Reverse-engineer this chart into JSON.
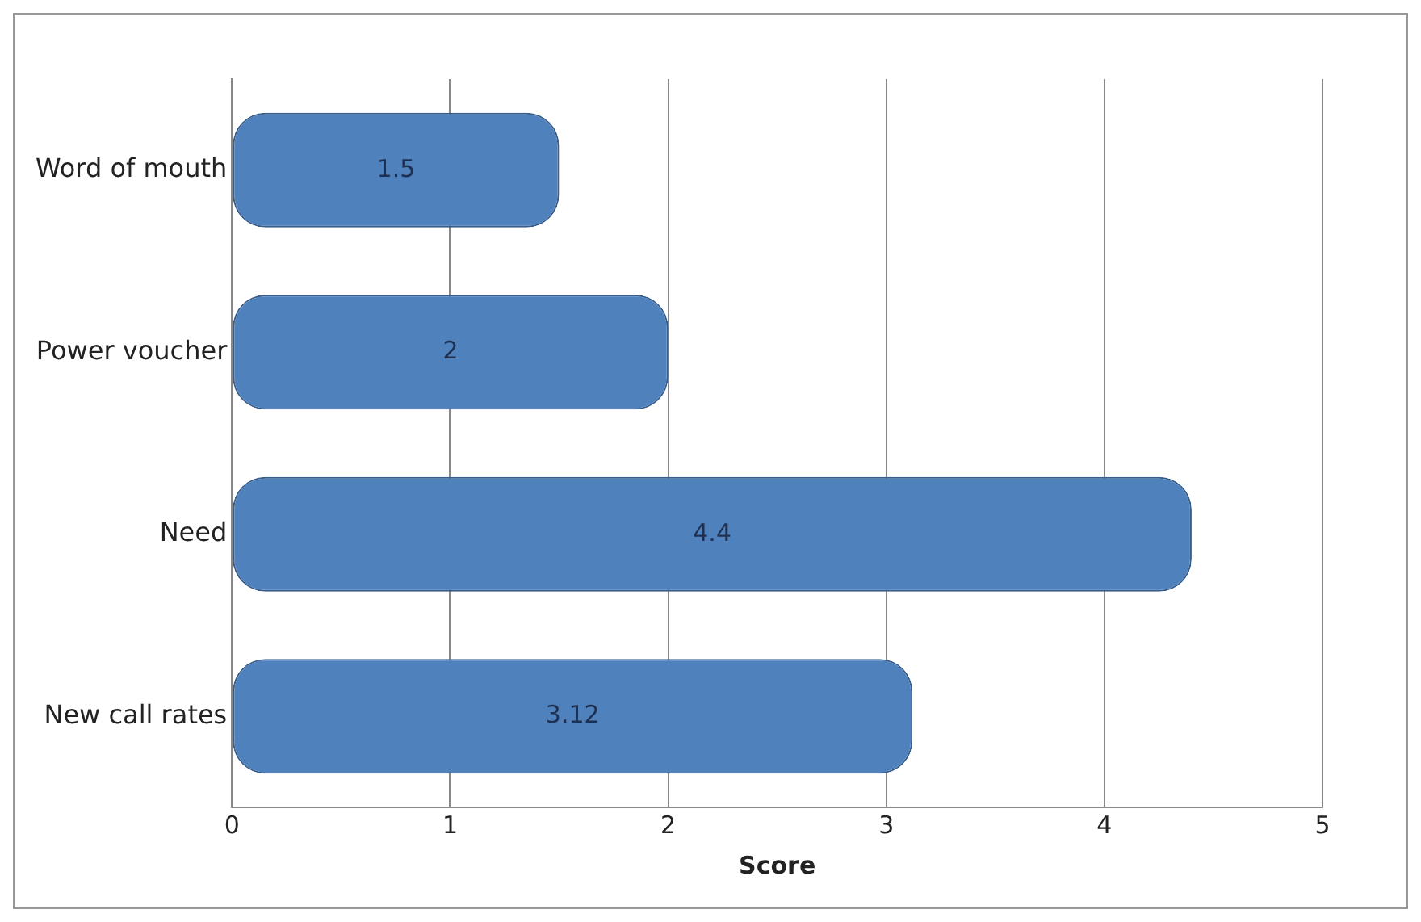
{
  "chart_data": {
    "type": "bar",
    "orientation": "horizontal",
    "categories": [
      "Word of mouth",
      "Power voucher",
      "Need",
      "New call rates"
    ],
    "values": [
      1.5,
      2,
      4.4,
      3.12
    ],
    "color": "#4f81bd",
    "xlabel": "Score",
    "xlim": [
      0,
      5
    ],
    "xticks": [
      0,
      1,
      2,
      3,
      4,
      5
    ],
    "grid": "x",
    "data_labels": true
  }
}
